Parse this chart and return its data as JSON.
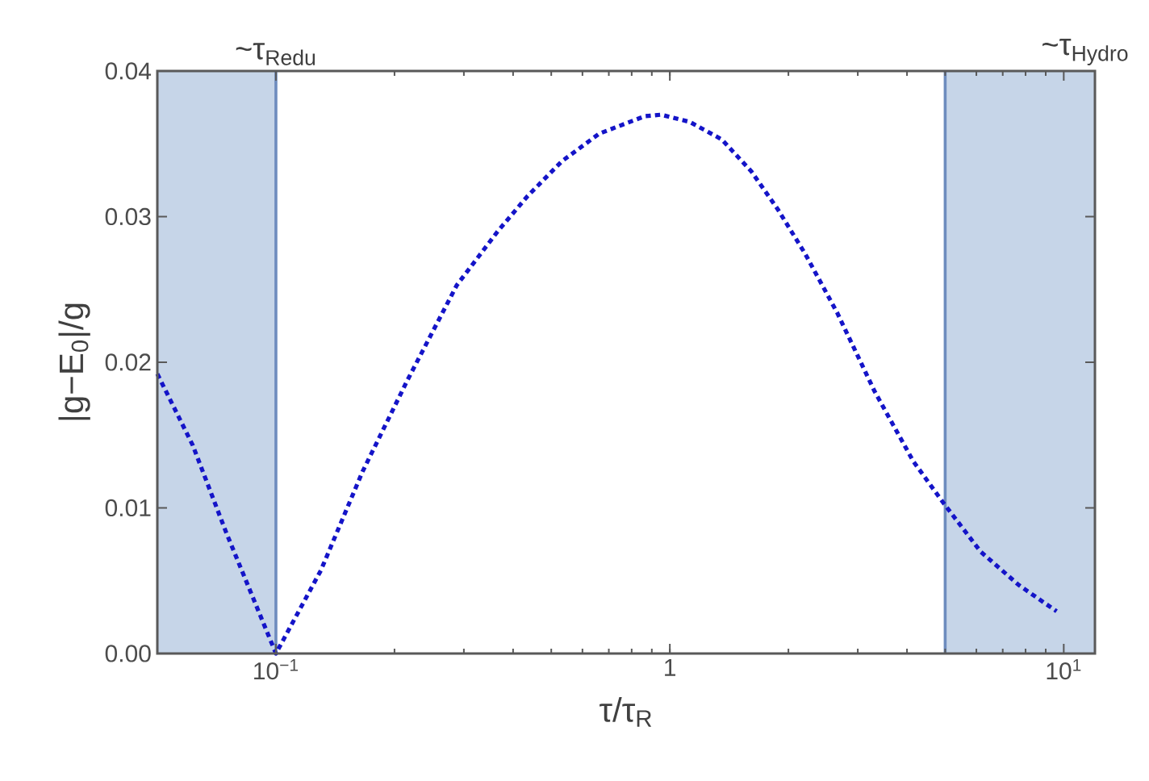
{
  "chart_data": {
    "type": "line",
    "xlabel": "τ/τ$_{R}$",
    "ylabel": "|g−E$_{0}$|/g",
    "log": "x",
    "xlim": [
      0.05,
      12
    ],
    "ylim": [
      0,
      0.04
    ],
    "xticks": [
      {
        "value": 0.1,
        "label": "10$^{−1}$"
      },
      1,
      {
        "value": 10,
        "label": "10$^{1}$"
      }
    ],
    "yticks": [
      {
        "value": 0,
        "label": "0.00"
      },
      {
        "value": 0.01,
        "label": "0.01"
      },
      {
        "value": 0.02,
        "label": "0.02"
      },
      {
        "value": 0.03,
        "label": "0.03"
      },
      {
        "value": 0.04,
        "label": "0.04"
      }
    ],
    "marker": "none",
    "line_style": "dotted",
    "bands": [
      {
        "axis": "x",
        "from": 0.05,
        "to": 0.1,
        "label": "~τ$_{Redu}$",
        "color": "#c6d5e8"
      },
      {
        "axis": "x",
        "from": 5,
        "to": 12,
        "label": "~τ$_{Hydro}$",
        "color": "#c6d5e8"
      }
    ],
    "ref_lines": [
      {
        "axis": "x",
        "value": 0.1,
        "color": "#6e8cbe",
        "line_style": "solid"
      },
      {
        "axis": "x",
        "value": 5,
        "color": "#6e8cbe",
        "line_style": "solid"
      }
    ],
    "series": [
      {
        "color": "#1414c8",
        "x": [
          0.05,
          0.0615,
          0.0748,
          0.1,
          0.13,
          0.166,
          0.216,
          0.288,
          0.366,
          0.435,
          0.532,
          0.662,
          0.865,
          0.95,
          1.124,
          1.355,
          1.611,
          1.88,
          2.2,
          2.66,
          3.31,
          4.15,
          4.93,
          6.15,
          7.69,
          9.59
        ],
        "values": [
          0.0192,
          0.0143,
          0.0083,
          0.0,
          0.0057,
          0.0125,
          0.0188,
          0.0253,
          0.029,
          0.0314,
          0.0338,
          0.0357,
          0.0369,
          0.037,
          0.0365,
          0.0353,
          0.0331,
          0.0305,
          0.0275,
          0.0234,
          0.018,
          0.0132,
          0.0104,
          0.007,
          0.0047,
          0.0029
        ]
      }
    ]
  }
}
